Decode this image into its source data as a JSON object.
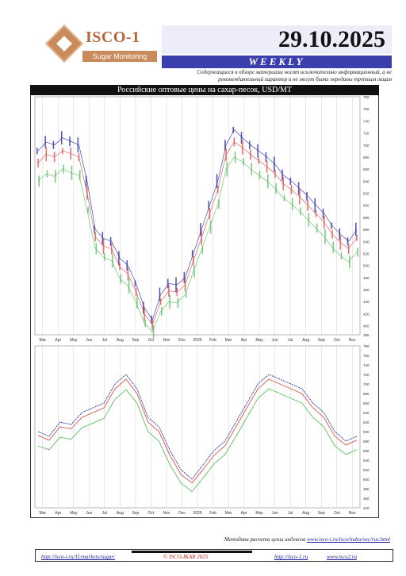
{
  "header": {
    "logo_name": "ISCO-1",
    "logo_sub": "Sugar Monitoring",
    "date": "29.10.2025",
    "weekly": "WEEKLY",
    "disclaimer": "Содержащиеся в обзоре материалы носят исключительно информационный, а не рекомендательный характер и не могут быть переданы третьим лицам"
  },
  "chart_data": {
    "type": "line",
    "title": "Российские оптовые цены на сахар-песок, USD/MT",
    "panels": [
      {
        "subtitle": "",
        "ylim": [
          385,
          780
        ],
        "y_ticks": [
          780,
          760,
          740,
          720,
          700,
          680,
          660,
          640,
          620,
          600,
          580,
          560,
          540,
          520,
          500,
          480,
          460,
          440,
          420,
          400,
          385
        ],
        "x_labels": [
          "Mar",
          "Apr",
          "May",
          "Jun",
          "Jul",
          "Aug",
          "Sep",
          "Oct",
          "Nov",
          "Dec",
          "2025",
          "Feb",
          "Mar",
          "Apr",
          "May",
          "Jun",
          "Jul",
          "Aug",
          "Sep",
          "Oct",
          "Nov"
        ],
        "series": [
          {
            "name": "",
            "color": "#2b2fa8",
            "values": [
              690,
              705,
              700,
              712,
              706,
              700,
              640,
              560,
              545,
              540,
              512,
              500,
              470,
              430,
              410,
              452,
              470,
              468,
              480,
              520,
              560,
              600,
              640,
              700,
              725,
              712,
              700,
              690,
              680,
              668,
              650,
              640,
              628,
              615,
              600,
              586,
              566,
              552,
              540,
              560
            ]
          },
          {
            "name": "",
            "color": "#d9534f",
            "values": [
              670,
              685,
              680,
              690,
              686,
              680,
              620,
              548,
              532,
              528,
              498,
              486,
              456,
              420,
              402,
              440,
              458,
              456,
              468,
              508,
              546,
              586,
              626,
              684,
              705,
              696,
              684,
              674,
              664,
              652,
              636,
              626,
              614,
              600,
              586,
              572,
              552,
              538,
              528,
              546
            ]
          },
          {
            "name": "",
            "color": "#5fbf5f",
            "values": [
              640,
              652,
              648,
              660,
              654,
              650,
              592,
              528,
              514,
              508,
              478,
              466,
              438,
              404,
              390,
              424,
              440,
              438,
              452,
              490,
              526,
              564,
              602,
              660,
              680,
              672,
              660,
              650,
              640,
              628,
              612,
              602,
              590,
              576,
              562,
              548,
              530,
              516,
              506,
              522
            ]
          }
        ]
      },
      {
        "subtitle": "",
        "ylim": [
          440,
          780
        ],
        "y_ticks": [
          780,
          760,
          740,
          720,
          700,
          680,
          660,
          640,
          620,
          600,
          580,
          560,
          540,
          520,
          500,
          480,
          460,
          440
        ],
        "x_labels": [
          "Mar",
          "Apr",
          "May",
          "Jun",
          "Jul",
          "Aug",
          "Sep",
          "Oct",
          "Nov",
          "Dec",
          "2025",
          "Feb",
          "Mar",
          "Apr",
          "May",
          "Jun",
          "Jul",
          "Aug",
          "Sep",
          "Oct",
          "Nov"
        ],
        "series": [
          {
            "name": "",
            "color": "#2b2fa8",
            "values": [
              600,
              590,
              620,
              615,
              640,
              650,
              660,
              700,
              720,
              690,
              630,
              610,
              560,
              520,
              500,
              530,
              560,
              580,
              620,
              660,
              700,
              720,
              710,
              700,
              690,
              660,
              640,
              600,
              580,
              590
            ]
          },
          {
            "name": "",
            "color": "#d9534f",
            "values": [
              592,
              582,
              610,
              606,
              630,
              640,
              650,
              690,
              710,
              680,
              620,
              600,
              550,
              510,
              492,
              520,
              550,
              570,
              610,
              650,
              690,
              710,
              700,
              690,
              680,
              650,
              630,
              590,
              572,
              582
            ]
          },
          {
            "name": "",
            "color": "#5fbf5f",
            "values": [
              570,
              562,
              588,
              584,
              608,
              618,
              628,
              668,
              688,
              660,
              600,
              580,
              530,
              492,
              474,
              502,
              532,
              552,
              590,
              630,
              670,
              690,
              680,
              670,
              660,
              630,
              610,
              570,
              552,
              562
            ]
          }
        ]
      }
    ]
  },
  "source": {
    "text": "Методика расчета цены индексов",
    "link": "www.isco-i.ru/isco/index/sec/rus.html"
  },
  "footer": {
    "left_link": "http://isco-i.ru/11/markets/sugar/",
    "center": "© ISCO-IKAR 2025",
    "right1": "http://isco-1.ru",
    "right2": "www.isco2.ru"
  }
}
